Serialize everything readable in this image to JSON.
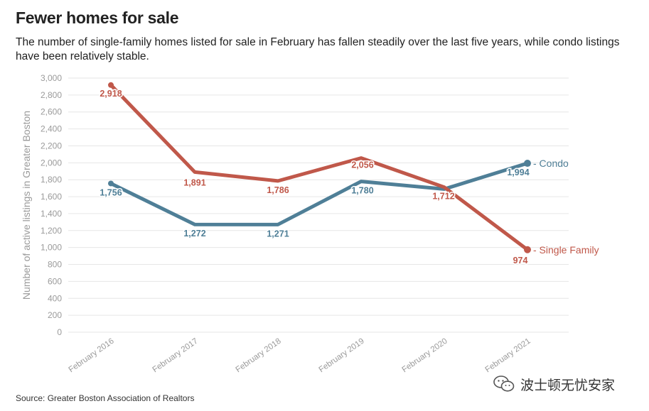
{
  "header": {
    "title": "Fewer homes for sale",
    "subtitle": "The number of single-family homes listed for sale in February has fallen steadily over the last five years, while condo listings have been relatively stable."
  },
  "footer": {
    "source": "Source: Greater Boston Association of Realtors",
    "watermark_text": "波士顿无忧安家"
  },
  "colors": {
    "single_family": "#c0584a",
    "condo": "#4f7f97",
    "grid": "#e6e6e6",
    "axis_text": "#9a9a9a"
  },
  "chart_data": {
    "type": "line",
    "title": "Fewer homes for sale",
    "xlabel": "",
    "ylabel": "Number of active listings in Greater Boston",
    "ylim": [
      0,
      3000
    ],
    "yticks": [
      0,
      200,
      400,
      600,
      800,
      1000,
      1200,
      1400,
      1600,
      1800,
      2000,
      2200,
      2400,
      2600,
      2800,
      3000
    ],
    "ytick_labels": [
      "0",
      "200",
      "400",
      "600",
      "800",
      "1,000",
      "1,200",
      "1,400",
      "1,600",
      "1,800",
      "2,000",
      "2,200",
      "2,400",
      "2,600",
      "2,800",
      "3,000"
    ],
    "categories": [
      "February 2016",
      "February 2017",
      "February 2018",
      "February 2019",
      "February 2020",
      "February 2021"
    ],
    "grid": true,
    "series": [
      {
        "name": "Single Family",
        "values": [
          2918,
          1891,
          1786,
          2056,
          1712,
          974
        ],
        "labels": [
          "2,918",
          "1,891",
          "1,786",
          "2,056",
          "1,712",
          "974"
        ]
      },
      {
        "name": "Condo",
        "values": [
          1756,
          1272,
          1271,
          1780,
          1690,
          1994
        ],
        "labels": [
          "1,756",
          "1,272",
          "1,271",
          "1,780",
          "",
          "1,994"
        ]
      }
    ]
  }
}
